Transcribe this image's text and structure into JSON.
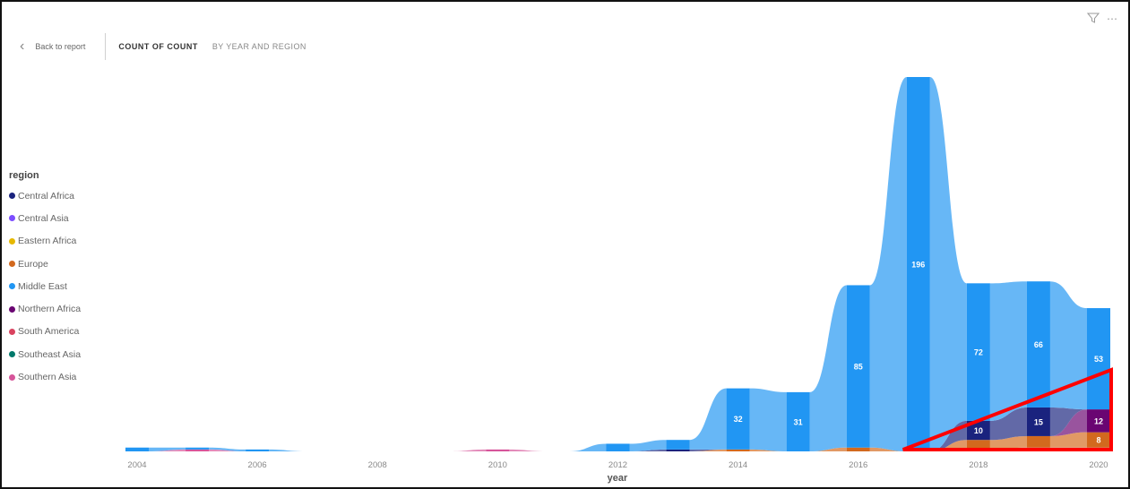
{
  "header": {
    "back_label": "Back to report",
    "title": "COUNT OF COUNT",
    "subtitle": "BY YEAR AND REGION"
  },
  "icons": {
    "filter": "filter-icon",
    "more": "more-options-icon",
    "back": "chevron-left-icon"
  },
  "legend": {
    "title": "region",
    "items": [
      {
        "label": "Central Africa",
        "color": "#1a237e"
      },
      {
        "label": "Central Asia",
        "color": "#7c4dff"
      },
      {
        "label": "Eastern Africa",
        "color": "#e6b800"
      },
      {
        "label": "Europe",
        "color": "#d2691e"
      },
      {
        "label": "Middle East",
        "color": "#2196f3"
      },
      {
        "label": "Northern Africa",
        "color": "#6a0572"
      },
      {
        "label": "South America",
        "color": "#d9435f"
      },
      {
        "label": "Southeast Asia",
        "color": "#00796b"
      },
      {
        "label": "Southern Asia",
        "color": "#d6559a"
      }
    ]
  },
  "chart_data": {
    "type": "area",
    "subtype": "ribbon",
    "x": [
      2004,
      2005,
      2006,
      2007,
      2008,
      2009,
      2010,
      2011,
      2012,
      2013,
      2014,
      2015,
      2016,
      2017,
      2018,
      2019,
      2020
    ],
    "xticks": [
      "2004",
      "2006",
      "2008",
      "2010",
      "2012",
      "2014",
      "2016",
      "2018",
      "2020"
    ],
    "xlabel": "year",
    "series": [
      {
        "name": "Middle East",
        "values": [
          2,
          1,
          1,
          0,
          0,
          0,
          0,
          0,
          4,
          5,
          32,
          31,
          85,
          196,
          72,
          66,
          53
        ]
      },
      {
        "name": "Central Africa",
        "values": [
          0,
          0,
          0,
          0,
          0,
          0,
          0,
          0,
          0,
          1,
          0,
          0,
          0,
          0,
          10,
          15,
          0
        ]
      },
      {
        "name": "Northern Africa",
        "values": [
          0,
          0,
          0,
          0,
          0,
          0,
          0,
          0,
          0,
          0,
          0,
          0,
          0,
          0,
          0,
          0,
          12
        ]
      },
      {
        "name": "Europe",
        "values": [
          0,
          0,
          0,
          0,
          0,
          0,
          0,
          0,
          0,
          0,
          1,
          0,
          2,
          0,
          5,
          6,
          8
        ]
      },
      {
        "name": "Southern Asia",
        "values": [
          0,
          1,
          0,
          0,
          0,
          0,
          1,
          0,
          0,
          0,
          0,
          0,
          0,
          0,
          1,
          2,
          2
        ]
      }
    ],
    "data_labels": [
      {
        "year": 2014,
        "series": "Middle East",
        "text": "32"
      },
      {
        "year": 2015,
        "series": "Middle East",
        "text": "31"
      },
      {
        "year": 2016,
        "series": "Middle East",
        "text": "85"
      },
      {
        "year": 2017,
        "series": "Middle East",
        "text": "196"
      },
      {
        "year": 2018,
        "series": "Middle East",
        "text": "72"
      },
      {
        "year": 2019,
        "series": "Middle East",
        "text": "66"
      },
      {
        "year": 2020,
        "series": "Middle East",
        "text": "53"
      },
      {
        "year": 2018,
        "series": "Central Africa",
        "text": "10"
      },
      {
        "year": 2019,
        "series": "Central Africa",
        "text": "15"
      },
      {
        "year": 2020,
        "series": "Northern Africa",
        "text": "12"
      },
      {
        "year": 2020,
        "series": "Europe",
        "text": "8"
      }
    ],
    "highlight": {
      "shape": "triangle",
      "color": "#ff0000"
    }
  }
}
